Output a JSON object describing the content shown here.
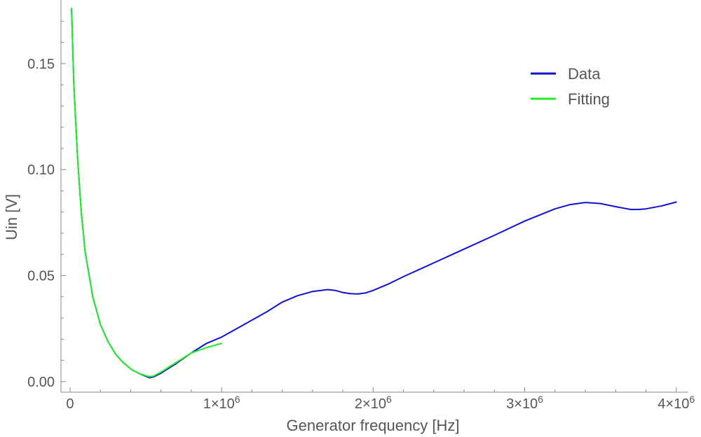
{
  "chart_data": {
    "type": "line",
    "title": "",
    "xlabel": "Generator frequency [Hz]",
    "ylabel": "Uin [V]",
    "xlim": [
      -60000,
      4080000
    ],
    "ylim": [
      -0.005,
      0.18
    ],
    "x_ticks": [
      {
        "value": 0,
        "label": "0",
        "exp": ""
      },
      {
        "value": 1000000,
        "label": "1×10",
        "exp": "6"
      },
      {
        "value": 2000000,
        "label": "2×10",
        "exp": "6"
      },
      {
        "value": 3000000,
        "label": "3×10",
        "exp": "6"
      },
      {
        "value": 4000000,
        "label": "4×10",
        "exp": "6"
      }
    ],
    "y_ticks": [
      {
        "value": 0.0,
        "label": "0.00"
      },
      {
        "value": 0.05,
        "label": "0.05"
      },
      {
        "value": 0.1,
        "label": "0.10"
      },
      {
        "value": 0.15,
        "label": "0.15"
      }
    ],
    "grid": false,
    "legend_position": "top-right",
    "series": [
      {
        "name": "Data",
        "color": "#1010d0",
        "x": [
          10000,
          25000,
          50000,
          75000,
          100000,
          150000,
          200000,
          250000,
          300000,
          350000,
          400000,
          450000,
          500000,
          525000,
          550000,
          600000,
          700000,
          800000,
          900000,
          1000000,
          1100000,
          1200000,
          1300000,
          1400000,
          1500000,
          1600000,
          1700000,
          1750000,
          1800000,
          1850000,
          1900000,
          1950000,
          2000000,
          2100000,
          2200000,
          2400000,
          2600000,
          2800000,
          3000000,
          3200000,
          3300000,
          3400000,
          3500000,
          3600000,
          3700000,
          3750000,
          3800000,
          3900000,
          4000000
        ],
        "y": [
          0.176,
          0.14,
          0.105,
          0.079,
          0.061,
          0.04,
          0.027,
          0.019,
          0.013,
          0.009,
          0.006,
          0.004,
          0.0025,
          0.0018,
          0.0022,
          0.004,
          0.0085,
          0.0135,
          0.018,
          0.021,
          0.025,
          0.029,
          0.033,
          0.0375,
          0.0405,
          0.0425,
          0.0434,
          0.043,
          0.042,
          0.0415,
          0.0413,
          0.0418,
          0.043,
          0.046,
          0.0495,
          0.056,
          0.0625,
          0.069,
          0.0757,
          0.0815,
          0.0835,
          0.0845,
          0.084,
          0.0825,
          0.0812,
          0.0812,
          0.0815,
          0.0828,
          0.0847
        ]
      },
      {
        "name": "Fitting",
        "color": "#22ee22",
        "x": [
          10000,
          25000,
          50000,
          75000,
          100000,
          150000,
          200000,
          250000,
          300000,
          350000,
          400000,
          450000,
          500000,
          525000,
          550000,
          600000,
          700000,
          800000,
          900000,
          1000000
        ],
        "y": [
          0.176,
          0.14,
          0.105,
          0.079,
          0.061,
          0.04,
          0.027,
          0.019,
          0.013,
          0.009,
          0.006,
          0.004,
          0.0028,
          0.0023,
          0.0026,
          0.0045,
          0.009,
          0.0135,
          0.016,
          0.018
        ]
      }
    ]
  }
}
